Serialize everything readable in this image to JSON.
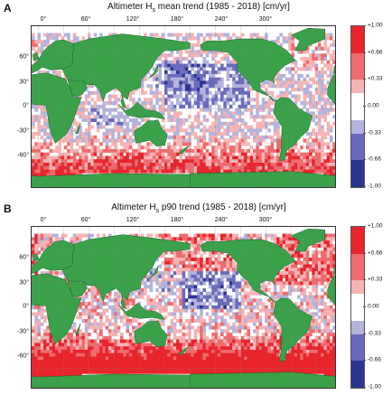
{
  "panels": [
    {
      "letter": "A",
      "title_prefix": "Altimeter H",
      "title_sub": "s",
      "title_suffix": " mean trend (1985 - 2018) [cm/yr]",
      "mode": "mean"
    },
    {
      "letter": "B",
      "title_prefix": "Altimeter H",
      "title_sub": "s",
      "title_suffix": " p90 trend (1985 - 2018) [cm/yr]",
      "mode": "p90"
    }
  ],
  "lon_labels": [
    "0°",
    "60°",
    "120°",
    "180°",
    "240°",
    "300°"
  ],
  "lat_labels": [
    "60°",
    "30°",
    "0°",
    "-30°",
    "-60°"
  ],
  "colorbar": {
    "labels": [
      "+1.00",
      "+0.66",
      "+0.33",
      "0.00",
      "-0.33",
      "-0.66",
      "-1.00"
    ],
    "colors": [
      "#e8242c",
      "#ef6b6e",
      "#f6b3b4",
      "#ffffff",
      "#b3b3dc",
      "#6a6abd",
      "#2b3590"
    ]
  },
  "colors": {
    "land": "#3aa14a",
    "coast": "#1f5f28"
  }
}
